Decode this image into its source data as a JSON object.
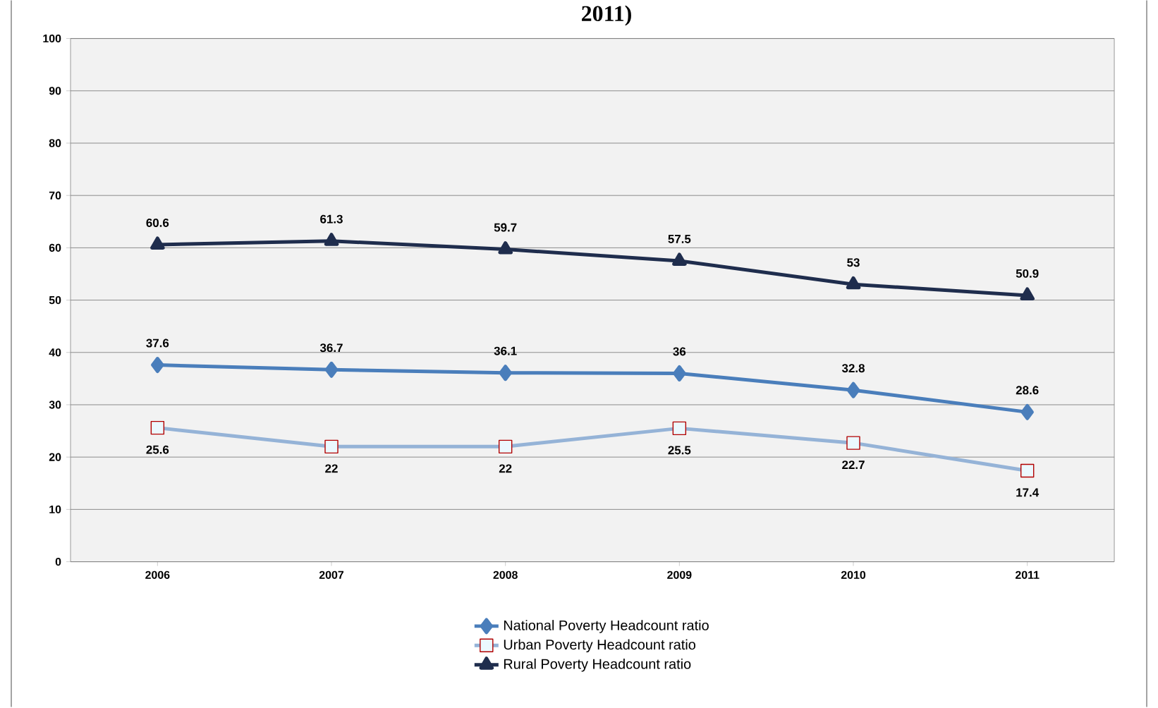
{
  "chart_data": {
    "type": "line",
    "title": "2011)",
    "categories": [
      "2006",
      "2007",
      "2008",
      "2009",
      "2010",
      "2011"
    ],
    "series": [
      {
        "name": "National Poverty Headcount ratio",
        "color": "#4a7ebb",
        "marker": "diamond",
        "values": [
          37.6,
          36.7,
          36.1,
          36,
          32.8,
          28.6
        ]
      },
      {
        "name": "Urban Poverty Headcount ratio",
        "color": "#95b3d7",
        "marker": "square",
        "values": [
          25.6,
          22,
          22,
          25.5,
          22.7,
          17.4
        ]
      },
      {
        "name": "Rural Poverty Headcount ratio",
        "color": "#1f2d4d",
        "marker": "triangle",
        "values": [
          60.6,
          61.3,
          59.7,
          57.5,
          53,
          50.9
        ]
      }
    ],
    "ylim": [
      0,
      100
    ],
    "yticks": [
      0,
      10,
      20,
      30,
      40,
      50,
      60,
      70,
      80,
      90,
      100
    ],
    "grid": "y",
    "legend": "bottom",
    "data_labels": true,
    "line_style": "solid"
  }
}
